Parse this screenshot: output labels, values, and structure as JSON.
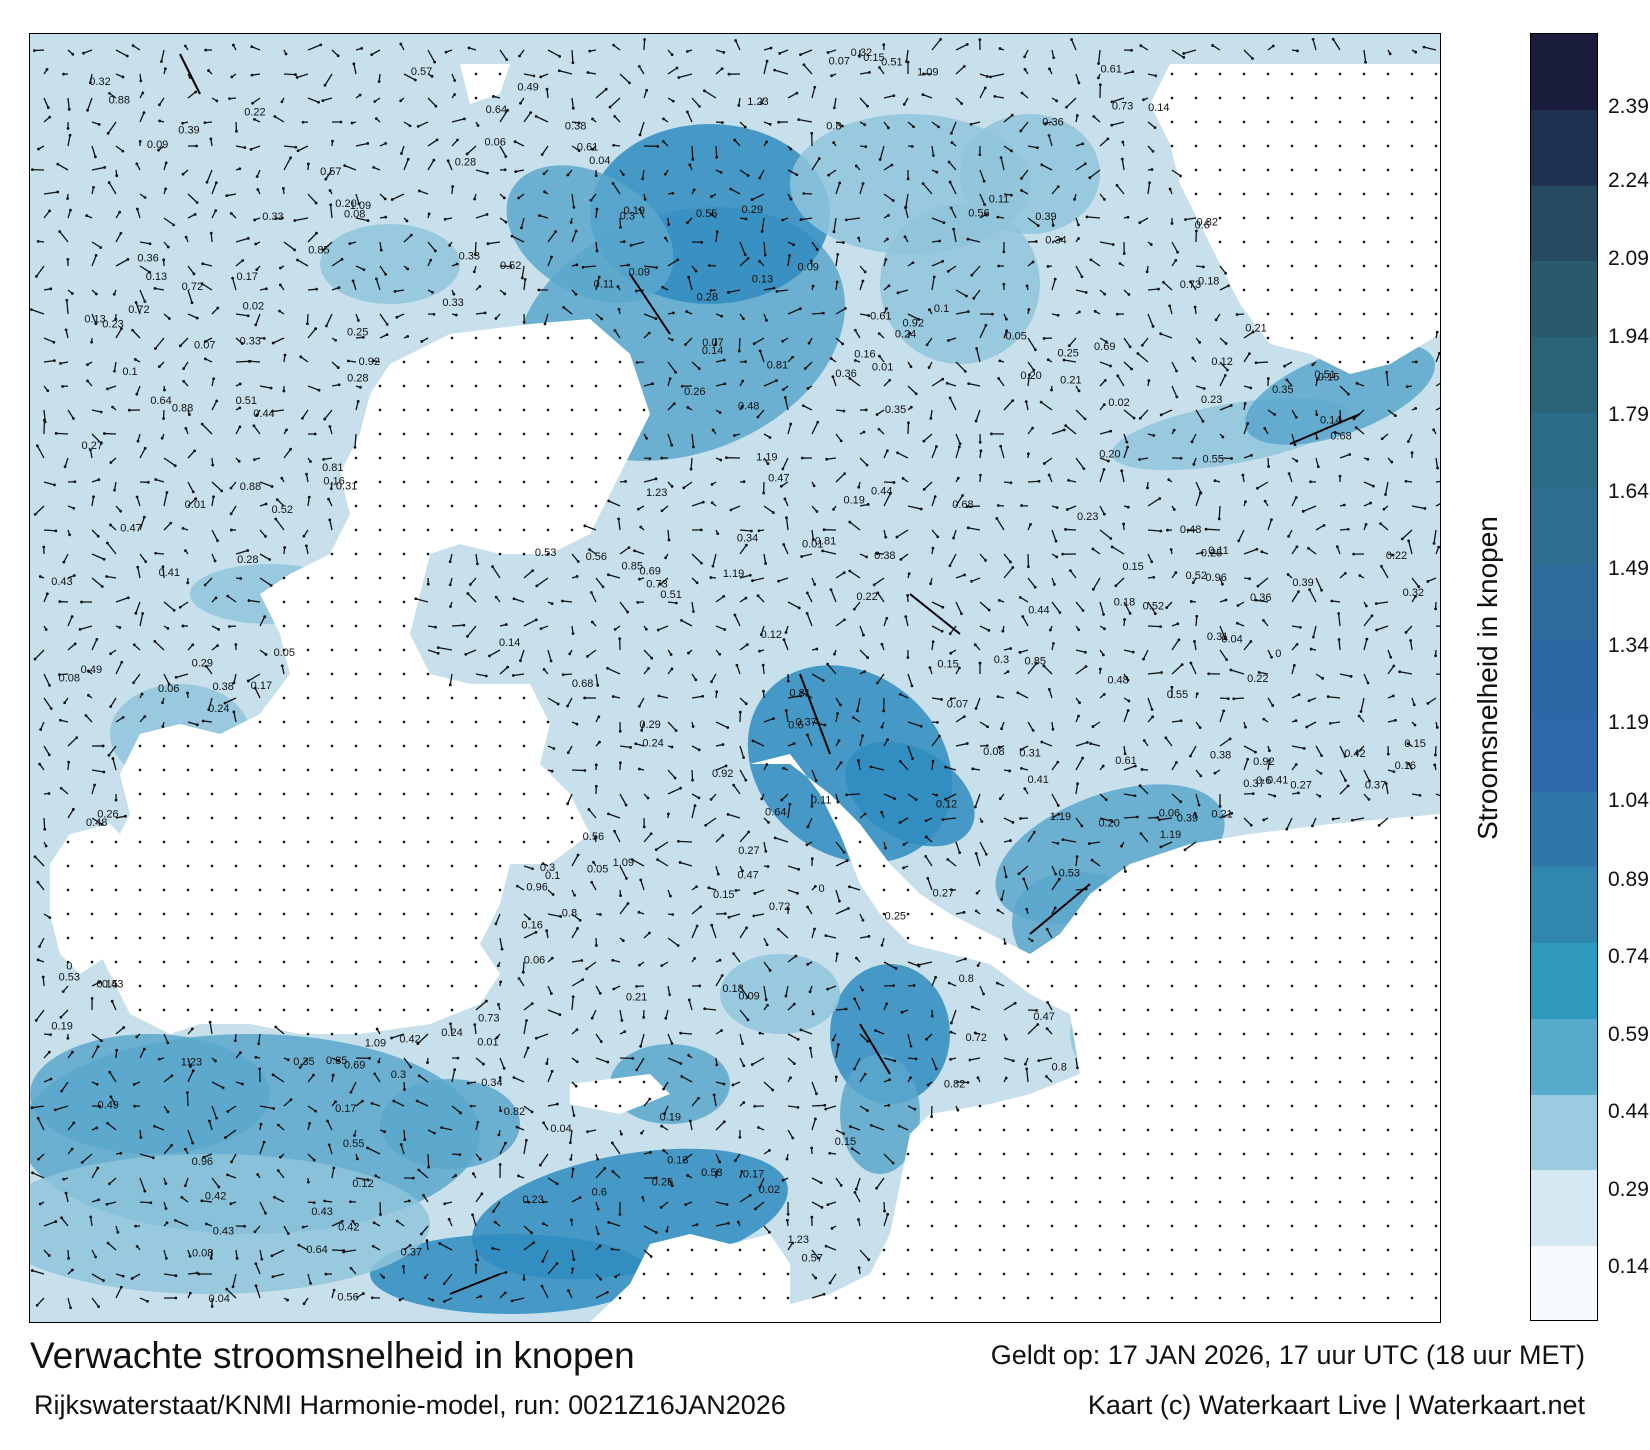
{
  "map": {
    "sea_colors": [
      "#c7e0ec",
      "#8fc4dc",
      "#5aa7cc",
      "#2f8cc0"
    ],
    "land_color": "#ffffff",
    "labels": [
      {
        "text": "0.24"
      },
      {
        "text": "0.11"
      },
      {
        "text": "0.17"
      },
      {
        "text": "0.13"
      },
      {
        "text": "0.20"
      },
      {
        "text": "0.16"
      },
      {
        "text": "0.12"
      },
      {
        "text": "0.08"
      },
      {
        "text": "0.06"
      },
      {
        "text": "0.07"
      },
      {
        "text": "0.15"
      },
      {
        "text": "0.19"
      },
      {
        "text": "0.14"
      },
      {
        "text": "0.23"
      },
      {
        "text": "0.28"
      },
      {
        "text": "0.38"
      },
      {
        "text": "0.43"
      },
      {
        "text": "0.39"
      },
      {
        "text": "0.15"
      },
      {
        "text": "0.01"
      },
      {
        "text": "0.51"
      },
      {
        "text": "0.52"
      },
      {
        "text": "0.61"
      },
      {
        "text": "0.56"
      },
      {
        "text": "0.72"
      },
      {
        "text": "0.53"
      },
      {
        "text": "0.48"
      },
      {
        "text": "0.6"
      },
      {
        "text": "0.55"
      },
      {
        "text": "0.42"
      },
      {
        "text": "0.33"
      },
      {
        "text": "0.21"
      },
      {
        "text": "0.25"
      },
      {
        "text": "0.27"
      },
      {
        "text": "0.37"
      },
      {
        "text": "0.09"
      },
      {
        "text": "0.04"
      },
      {
        "text": "0.81"
      },
      {
        "text": "0.8"
      },
      {
        "text": "1.09"
      },
      {
        "text": "1.23"
      },
      {
        "text": "1.19"
      },
      {
        "text": "0.92"
      },
      {
        "text": "0.85"
      },
      {
        "text": "0.73"
      },
      {
        "text": "0.64"
      },
      {
        "text": "0.47"
      },
      {
        "text": "0.36"
      },
      {
        "text": "0.3"
      },
      {
        "text": "0.22"
      },
      {
        "text": "0.82"
      },
      {
        "text": "0.96"
      },
      {
        "text": "0.88"
      },
      {
        "text": "0.69"
      },
      {
        "text": "0.68"
      },
      {
        "text": "0.05"
      },
      {
        "text": "0.44"
      },
      {
        "text": "0.35"
      },
      {
        "text": "0.29"
      },
      {
        "text": "0.18"
      },
      {
        "text": "0.1"
      },
      {
        "text": "0.02"
      },
      {
        "text": "0"
      },
      {
        "text": "0.31"
      },
      {
        "text": "0.26"
      },
      {
        "text": "0.41"
      },
      {
        "text": "0.57"
      },
      {
        "text": "0.49"
      },
      {
        "text": "0.34"
      },
      {
        "text": "0.32"
      }
    ]
  },
  "colorbar": {
    "title": "Stroomsnelheid in knopen",
    "ticks": [
      "2.39",
      "2.24",
      "2.09",
      "1.94",
      "1.79",
      "1.64",
      "1.49",
      "1.34",
      "1.19",
      "1.04",
      "0.89",
      "0.74",
      "0.59",
      "0.44",
      "0.29",
      "0.14"
    ],
    "colors": [
      "#1b1d3d",
      "#1f3150",
      "#264a60",
      "#2a596d",
      "#2a6478",
      "#2b6d86",
      "#306f92",
      "#2f6c9c",
      "#2c68a6",
      "#2f68a8",
      "#3176a8",
      "#2f87af",
      "#2e98bd",
      "#57abcd",
      "#9ccae0",
      "#d6e9f2",
      "#f6fafc"
    ]
  },
  "captions": {
    "title": "Verwachte stroomsnelheid in knopen",
    "model_run": "Rijkswaterstaat/KNMI Harmonie-model, run: 0021Z16JAN2026",
    "valid_time": "Geldt op: 17 JAN 2026, 17 uur UTC (18 uur MET)",
    "credit": "Kaart (c) Waterkaart Live | Waterkaart.net"
  }
}
